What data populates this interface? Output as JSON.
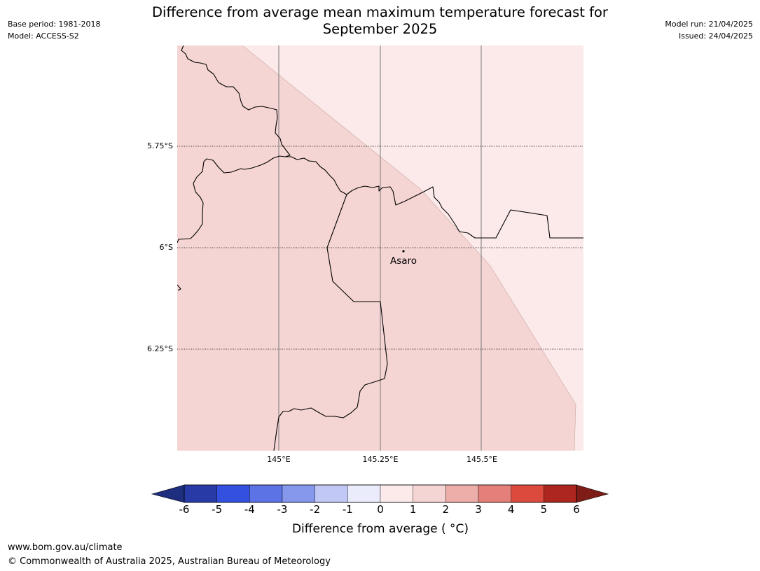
{
  "header": {
    "title_line1": "Difference from average mean maximum temperature forecast for",
    "title_line2": "September 2025",
    "base_period": "Base period: 1981-2018",
    "model": "Model: ACCESS-S2",
    "model_run": "Model run: 21/04/2025",
    "issued": "Issued: 24/04/2025"
  },
  "map": {
    "latitude_labels": [
      "5.75°S",
      "6°S",
      "6.25°S"
    ],
    "longitude_labels": [
      "145°E",
      "145.25°E",
      "145.5°E"
    ],
    "place": {
      "name": "Asaro"
    },
    "fill_colors": {
      "band_0_1": "#fbeae9",
      "band_1_2": "#f4d5d3"
    }
  },
  "colorbar": {
    "ticks": [
      "-6",
      "-5",
      "-4",
      "-3",
      "-2",
      "-1",
      "0",
      "1",
      "2",
      "3",
      "4",
      "5",
      "6"
    ],
    "colors": [
      "#283aa6",
      "#3350df",
      "#5c73e5",
      "#8598ec",
      "#c1c8f5",
      "#eaecfc",
      "#fbeae9",
      "#f4d5d3",
      "#edada8",
      "#e57f79",
      "#dc4a3e",
      "#ad261f"
    ],
    "extend_low_color": "#1e2e7e",
    "extend_high_color": "#7e1c17",
    "label": "Difference from average ( °C)"
  },
  "footer": {
    "url": "www.bom.gov.au/climate",
    "copyright": "© Commonwealth of Australia 2025, Australian Bureau of Meteorology"
  }
}
